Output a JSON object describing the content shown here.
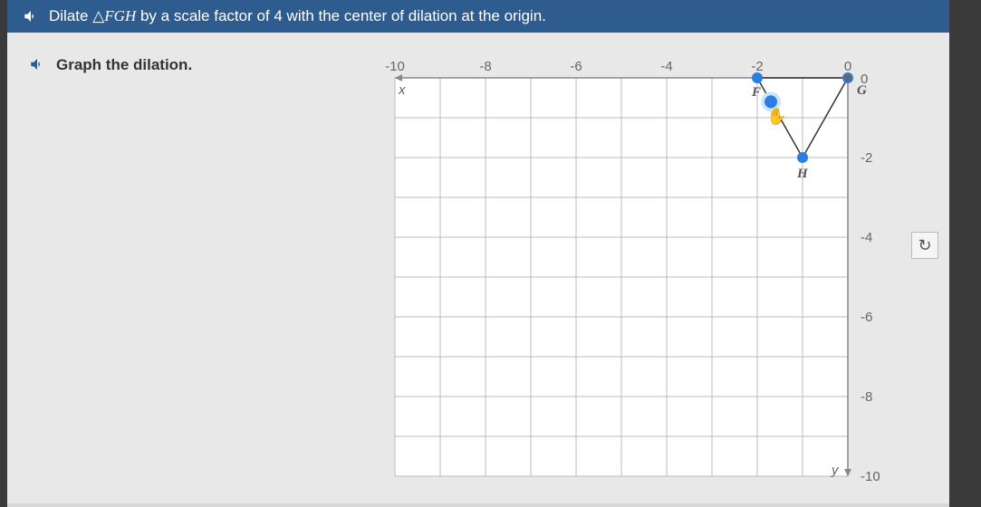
{
  "header": {
    "prefix": "Dilate",
    "triangle_symbol": "△",
    "triangle_name": "FGH",
    "suffix": "by a scale factor of 4 with the center of dilation at the origin."
  },
  "instruction": {
    "text": "Graph the dilation."
  },
  "graph": {
    "type": "coordinate-grid",
    "xlim": [
      -10,
      0
    ],
    "ylim": [
      -10,
      0
    ],
    "grid_step": 1,
    "tick_step": 2,
    "x_ticks": [
      "-10",
      "-8",
      "-6",
      "-4",
      "-2",
      "0"
    ],
    "y_ticks": [
      "0",
      "-2",
      "-4",
      "-6",
      "-8",
      "-10"
    ],
    "background_color": "#ffffff",
    "grid_color": "#bbbbbb",
    "axis_color": "#888888",
    "point_color": "#2a7de1",
    "triangle_color": "#333333",
    "points": {
      "F": {
        "x": -2,
        "y": 0,
        "label": "F"
      },
      "G": {
        "x": 0,
        "y": 0,
        "label": "G"
      },
      "H": {
        "x": -1,
        "y": -2,
        "label": "H"
      }
    },
    "origin_label": "0",
    "x_axis_label": "x",
    "y_axis_label": "y"
  },
  "reset": {
    "symbol": "↻"
  }
}
